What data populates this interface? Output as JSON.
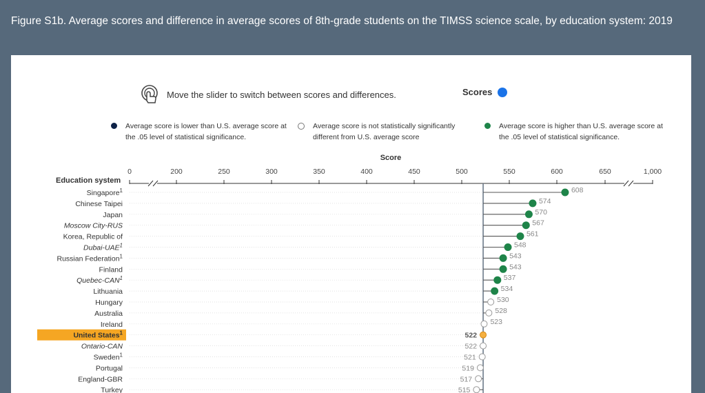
{
  "header": {
    "title": "Figure S1b. Average scores and difference in average scores of 8th-grade students on the TIMSS science scale, by education system: 2019"
  },
  "controls": {
    "slider_hint": "Move the slider to switch between scores and differences.",
    "toggle_label": "Scores",
    "toggle_color": "#1a73e8"
  },
  "legend": [
    {
      "text": "Average score is lower than U.S. average score at the .05 level of statistical significance.",
      "color": "#0d2147",
      "style": "filled"
    },
    {
      "text": "Average score is not statistically significantly different from U.S. average score",
      "color": "#ffffff",
      "style": "hollow"
    },
    {
      "text": "Average score is higher than U.S. average score at the .05 level of statistical significance.",
      "color": "#1e8449",
      "style": "filled"
    }
  ],
  "chart_data": {
    "type": "lollipop",
    "title": "Score",
    "column_header": "Education system",
    "xlabel": "Score",
    "x_ticks": [
      "0",
      "200",
      "250",
      "300",
      "350",
      "400",
      "450",
      "500",
      "550",
      "600",
      "650",
      "1,000"
    ],
    "axis_break": true,
    "reference_value": 522,
    "reference_label": "United States",
    "rows": [
      {
        "label": "Singapore",
        "sup": "1",
        "italic": false,
        "value": 608,
        "status": "higher"
      },
      {
        "label": "Chinese Taipei",
        "sup": "",
        "italic": false,
        "value": 574,
        "status": "higher"
      },
      {
        "label": "Japan",
        "sup": "",
        "italic": false,
        "value": 570,
        "status": "higher"
      },
      {
        "label": "Moscow City-RUS",
        "sup": "",
        "italic": true,
        "value": 567,
        "status": "higher"
      },
      {
        "label": "Korea, Republic of",
        "sup": "",
        "italic": false,
        "value": 561,
        "status": "higher"
      },
      {
        "label": "Dubai-UAE",
        "sup": "1",
        "italic": true,
        "value": 548,
        "status": "higher"
      },
      {
        "label": "Russian Federation",
        "sup": "1",
        "italic": false,
        "value": 543,
        "status": "higher"
      },
      {
        "label": "Finland",
        "sup": "",
        "italic": false,
        "value": 543,
        "status": "higher"
      },
      {
        "label": "Quebec-CAN",
        "sup": "1",
        "italic": true,
        "value": 537,
        "status": "higher"
      },
      {
        "label": "Lithuania",
        "sup": "",
        "italic": false,
        "value": 534,
        "status": "higher"
      },
      {
        "label": "Hungary",
        "sup": "",
        "italic": false,
        "value": 530,
        "status": "ns"
      },
      {
        "label": "Australia",
        "sup": "",
        "italic": false,
        "value": 528,
        "status": "ns"
      },
      {
        "label": "Ireland",
        "sup": "",
        "italic": false,
        "value": 523,
        "status": "ns"
      },
      {
        "label": "United States",
        "sup": "1",
        "italic": false,
        "value": 522,
        "status": "us"
      },
      {
        "label": "Ontario-CAN",
        "sup": "",
        "italic": true,
        "value": 522,
        "status": "ns"
      },
      {
        "label": "Sweden",
        "sup": "1",
        "italic": false,
        "value": 521,
        "status": "ns"
      },
      {
        "label": "Portugal",
        "sup": "",
        "italic": false,
        "value": 519,
        "status": "ns"
      },
      {
        "label": "England-GBR",
        "sup": "",
        "italic": false,
        "value": 517,
        "status": "ns"
      },
      {
        "label": "Turkey",
        "sup": "",
        "italic": false,
        "value": 515,
        "status": "ns"
      }
    ],
    "colors": {
      "higher": "#1e8449",
      "lower": "#0d2147",
      "ns_fill": "#ffffff",
      "ns_stroke": "#999999",
      "us_fill": "#f5b041",
      "us_stroke": "#d68910",
      "us_highlight": "#f5a623",
      "stem": "#555555",
      "ref_line": "#6c7a89"
    }
  }
}
